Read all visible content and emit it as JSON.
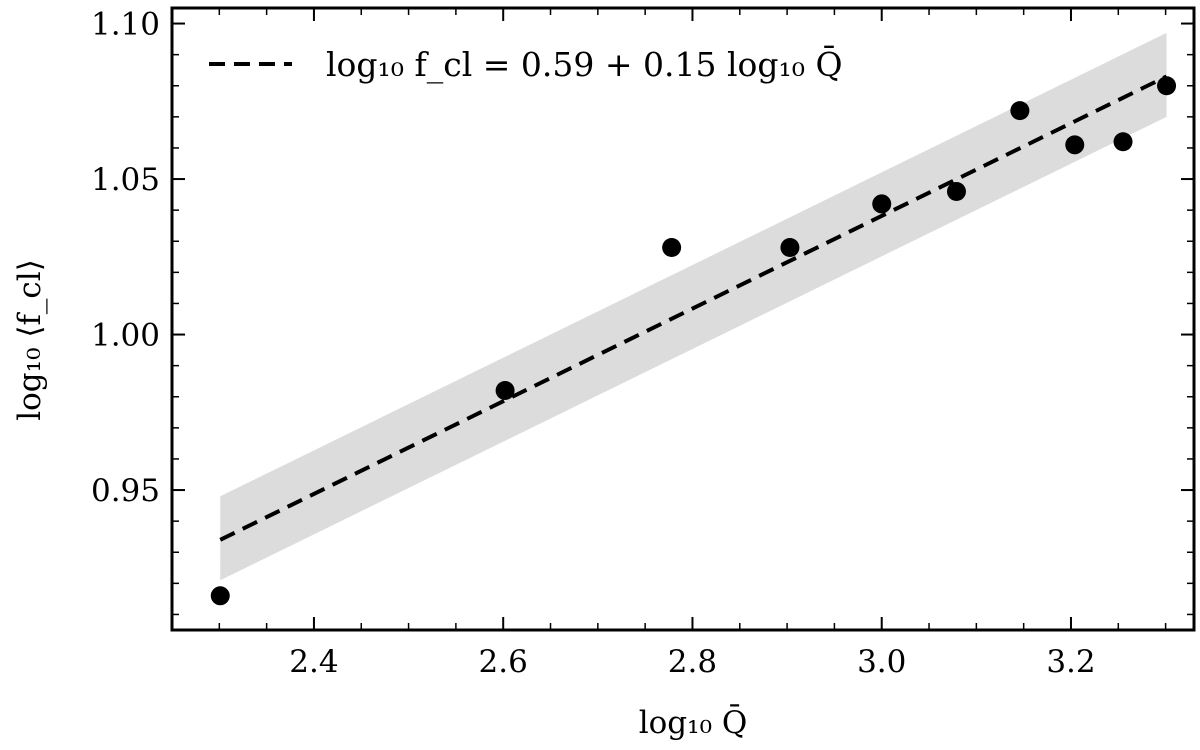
{
  "chart_data": {
    "type": "scatter",
    "xlabel": "log₁₀ Q̄",
    "ylabel": "log₁₀ ⟨f_cl⟩",
    "xlim": [
      2.25,
      3.33
    ],
    "ylim": [
      0.905,
      1.105
    ],
    "x_ticks": [
      "2.4",
      "2.6",
      "2.8",
      "3.0",
      "3.2"
    ],
    "y_ticks": [
      "0.95",
      "1.00",
      "1.05",
      "1.10"
    ],
    "grid": false,
    "legend_position": "top-left",
    "series": [
      {
        "type": "scatter",
        "color": "#000000",
        "points": [
          {
            "x": 2.301,
            "y": 0.916
          },
          {
            "x": 2.602,
            "y": 0.982
          },
          {
            "x": 2.778,
            "y": 1.028
          },
          {
            "x": 2.903,
            "y": 1.028
          },
          {
            "x": 3.0,
            "y": 1.042
          },
          {
            "x": 3.079,
            "y": 1.046
          },
          {
            "x": 3.146,
            "y": 1.072
          },
          {
            "x": 3.204,
            "y": 1.061
          },
          {
            "x": 3.255,
            "y": 1.062
          },
          {
            "x": 3.301,
            "y": 1.08
          }
        ]
      },
      {
        "name": "log₁₀ f_cl = 0.59 + 0.15 log₁₀ Q̄",
        "type": "line",
        "style": "dashed",
        "color": "#000000",
        "points": [
          {
            "x": 2.301,
            "y": 0.934
          },
          {
            "x": 3.301,
            "y": 1.083
          }
        ]
      },
      {
        "type": "band",
        "color": "#dcdcdc",
        "lower": [
          {
            "x": 2.301,
            "y": 0.921
          },
          {
            "x": 3.301,
            "y": 1.07
          }
        ],
        "upper": [
          {
            "x": 2.301,
            "y": 0.948
          },
          {
            "x": 3.301,
            "y": 1.097
          }
        ]
      }
    ]
  }
}
